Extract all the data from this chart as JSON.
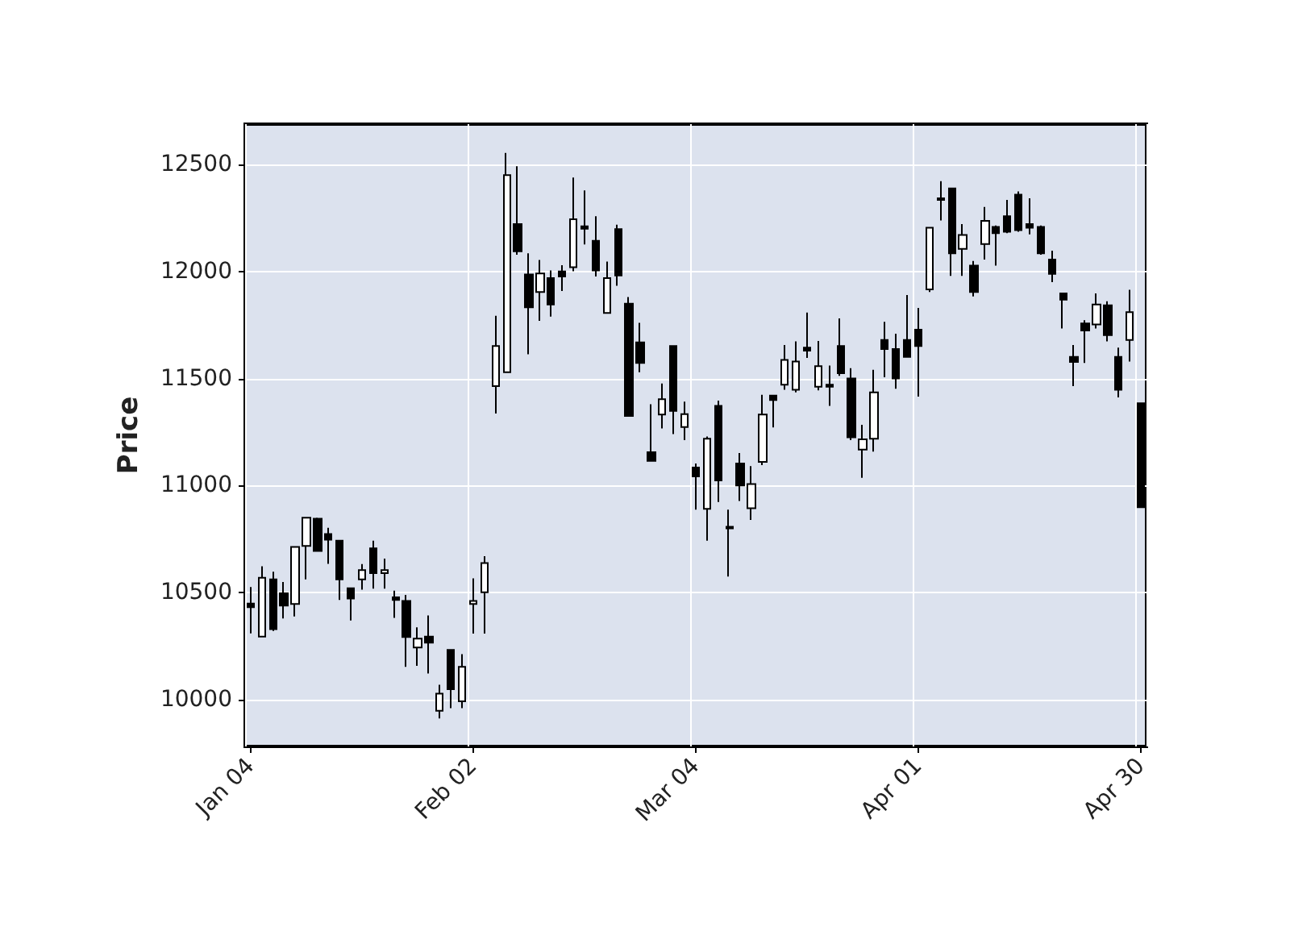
{
  "chart_data": {
    "type": "candlestick",
    "ylabel": "Price",
    "color": "#000000",
    "grid": true,
    "ylim": [
      9780,
      12690
    ],
    "yticks": [
      10000,
      10500,
      11000,
      11500,
      12000,
      12500
    ],
    "categories": [
      "Jan 04",
      null,
      null,
      null,
      null,
      null,
      null,
      null,
      null,
      null,
      null,
      null,
      null,
      null,
      null,
      null,
      null,
      null,
      null,
      null,
      "Feb 02",
      null,
      null,
      null,
      null,
      null,
      null,
      null,
      null,
      null,
      null,
      null,
      null,
      null,
      null,
      null,
      null,
      null,
      null,
      null,
      "Mar 04",
      null,
      null,
      null,
      null,
      null,
      null,
      null,
      null,
      null,
      null,
      null,
      null,
      null,
      null,
      null,
      null,
      null,
      null,
      null,
      "Apr 01",
      null,
      null,
      null,
      null,
      null,
      null,
      null,
      null,
      null,
      null,
      null,
      null,
      null,
      null,
      null,
      null,
      null,
      null,
      null,
      "Apr 30"
    ],
    "ohlc": [
      [
        10448,
        10525,
        10309,
        10431
      ],
      [
        10294,
        10622,
        10294,
        10569
      ],
      [
        10561,
        10597,
        10320,
        10328
      ],
      [
        10496,
        10549,
        10378,
        10439
      ],
      [
        10446,
        10713,
        10388,
        10713
      ],
      [
        10718,
        10850,
        10561,
        10850
      ],
      [
        10845,
        10850,
        10690,
        10694
      ],
      [
        10773,
        10802,
        10634,
        10747
      ],
      [
        10742,
        10742,
        10465,
        10561
      ],
      [
        10520,
        10520,
        10369,
        10472
      ],
      [
        10561,
        10633,
        10513,
        10605
      ],
      [
        10706,
        10742,
        10518,
        10590
      ],
      [
        10590,
        10658,
        10518,
        10605
      ],
      [
        10477,
        10508,
        10381,
        10465
      ],
      [
        10460,
        10489,
        10152,
        10292
      ],
      [
        10243,
        10337,
        10157,
        10284
      ],
      [
        10294,
        10393,
        10121,
        10265
      ],
      [
        9947,
        10068,
        9911,
        10027
      ],
      [
        10231,
        10231,
        9959,
        10048
      ],
      [
        9991,
        10212,
        9959,
        10152
      ],
      [
        10446,
        10566,
        10308,
        10460
      ],
      [
        10501,
        10670,
        10308,
        10638
      ],
      [
        11465,
        11794,
        11337,
        11652
      ],
      [
        11530,
        12555,
        11530,
        12452
      ],
      [
        12223,
        12493,
        12079,
        12095
      ],
      [
        11987,
        12086,
        11614,
        11833
      ],
      [
        11905,
        12055,
        11770,
        11992
      ],
      [
        11970,
        12006,
        11790,
        11847
      ],
      [
        12001,
        12030,
        11910,
        11978
      ],
      [
        12021,
        12440,
        12002,
        12245
      ],
      [
        12212,
        12380,
        12127,
        12201
      ],
      [
        12144,
        12259,
        11978,
        12006
      ],
      [
        11807,
        12047,
        11807,
        11970
      ],
      [
        12199,
        12220,
        11934,
        11982
      ],
      [
        11850,
        11881,
        11325,
        11325
      ],
      [
        11669,
        11761,
        11530,
        11573
      ],
      [
        11156,
        11380,
        11115,
        11115
      ],
      [
        11332,
        11477,
        11267,
        11404
      ],
      [
        11652,
        11652,
        11241,
        11349
      ],
      [
        11274,
        11392,
        11212,
        11334
      ],
      [
        11084,
        11103,
        10887,
        11043
      ],
      [
        10891,
        11229,
        10742,
        11219
      ],
      [
        11373,
        11397,
        10923,
        11024
      ],
      [
        10807,
        10887,
        10574,
        10800
      ],
      [
        11103,
        11152,
        10928,
        11000
      ],
      [
        10894,
        11091,
        10839,
        11007
      ],
      [
        11111,
        11424,
        11096,
        11332
      ],
      [
        11421,
        11421,
        11272,
        11400
      ],
      [
        11472,
        11657,
        11448,
        11587
      ],
      [
        11448,
        11674,
        11436,
        11580
      ],
      [
        11645,
        11809,
        11597,
        11631
      ],
      [
        11462,
        11676,
        11445,
        11558
      ],
      [
        11472,
        11561,
        11373,
        11462
      ],
      [
        11652,
        11782,
        11513,
        11525
      ],
      [
        11501,
        11549,
        11212,
        11226
      ],
      [
        11168,
        11284,
        11036,
        11216
      ],
      [
        11219,
        11541,
        11159,
        11436
      ],
      [
        11681,
        11766,
        11506,
        11638
      ],
      [
        11638,
        11710,
        11453,
        11501
      ],
      [
        11681,
        11891,
        11602,
        11602
      ],
      [
        11729,
        11831,
        11416,
        11652
      ],
      [
        11917,
        12206,
        11905,
        12206
      ],
      [
        12343,
        12423,
        12240,
        12336
      ],
      [
        12389,
        12389,
        11980,
        12086
      ],
      [
        12107,
        12223,
        11980,
        12172
      ],
      [
        12028,
        12050,
        11884,
        11905
      ],
      [
        12129,
        12303,
        12057,
        12238
      ],
      [
        12209,
        12216,
        12028,
        12180
      ],
      [
        12259,
        12336,
        12180,
        12187
      ],
      [
        12360,
        12375,
        12187,
        12194
      ],
      [
        12223,
        12343,
        12175,
        12206
      ],
      [
        12209,
        12216,
        12079,
        12086
      ],
      [
        12057,
        12098,
        11951,
        11990
      ],
      [
        11898,
        11898,
        11734,
        11869
      ],
      [
        11602,
        11657,
        11465,
        11578
      ],
      [
        11758,
        11773,
        11573,
        11725
      ],
      [
        11753,
        11898,
        11734,
        11847
      ],
      [
        11843,
        11862,
        11674,
        11703
      ],
      [
        11602,
        11645,
        11412,
        11448
      ],
      [
        11681,
        11915,
        11580,
        11811
      ],
      [
        11385,
        11385,
        10899,
        10899
      ]
    ]
  }
}
